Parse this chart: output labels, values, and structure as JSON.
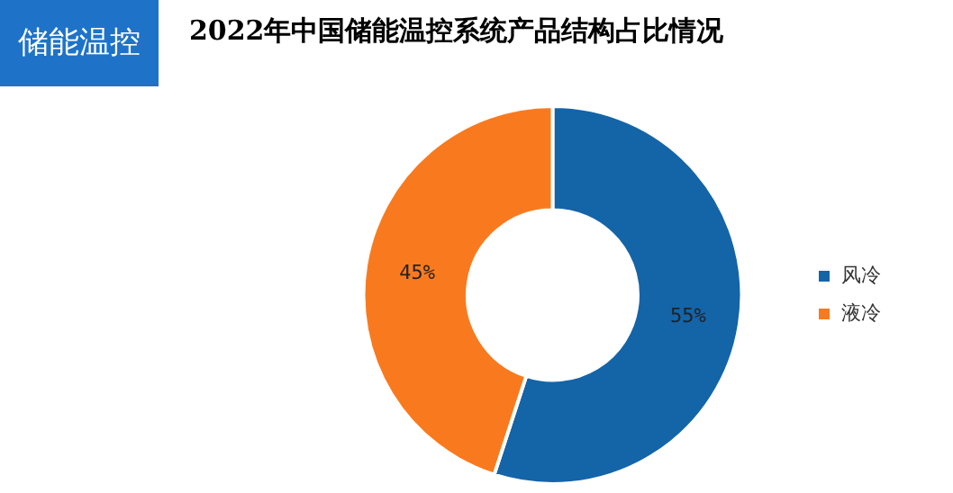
{
  "chart_data": {
    "type": "donut",
    "title": "2022年中国储能温控系统产品结构占比情况",
    "annotations": [
      "储能温控"
    ],
    "categories": [
      "风冷",
      "液冷"
    ],
    "values": [
      55,
      45
    ],
    "colors": [
      "#1464a8",
      "#f97a1e"
    ],
    "value_labels": [
      "55%",
      "45%"
    ],
    "legend": "right"
  }
}
